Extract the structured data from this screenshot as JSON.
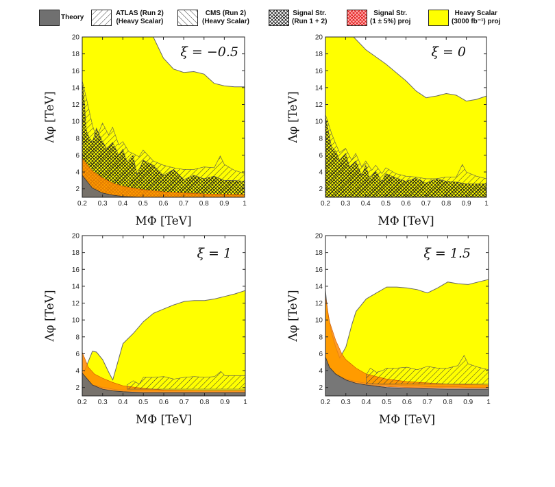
{
  "legend": {
    "items": [
      {
        "key": "theory",
        "line1": "Theory",
        "line2": "",
        "style": "solid",
        "color": "#6e6e6e"
      },
      {
        "key": "atlas",
        "line1": "ATLAS (Run 2)",
        "line2": "(Heavy Scalar)",
        "style": "hatch-ne",
        "color": "#444444"
      },
      {
        "key": "cms",
        "line1": "CMS  (Run 2)",
        "line2": "(Heavy Scalar)",
        "style": "hatch-nw",
        "color": "#444444"
      },
      {
        "key": "signal",
        "line1": "Signal Str.",
        "line2": "(Run 1 + 2)",
        "style": "crosshatch",
        "color": "#111111"
      },
      {
        "key": "signalproj",
        "line1": "Signal Str.",
        "line2": "(1 ± 5%) proj",
        "style": "crosshatch-red",
        "color": "#e02020"
      },
      {
        "key": "heavyproj",
        "line1": "Heavy Scalar",
        "line2": "(3000 fb⁻¹) proj",
        "style": "solid",
        "color": "#ffff00"
      }
    ]
  },
  "chart_data": [
    {
      "type": "area",
      "xi_label": "ξ = −0.5",
      "xlabel": "MΦ [TeV]",
      "ylabel": "Λφ [TeV]",
      "xlim": [
        0.2,
        1.0
      ],
      "ylim": [
        1,
        20
      ],
      "xticks": [
        "0.2",
        "0.3",
        "0.4",
        "0.5",
        "0.6",
        "0.7",
        "0.8",
        "0.9",
        "1"
      ],
      "yticks": [
        "2",
        "4",
        "6",
        "8",
        "10",
        "12",
        "14",
        "16",
        "18",
        "20"
      ],
      "series": [
        {
          "name": "Heavy Scalar (3000 fb⁻¹) proj",
          "region": "below",
          "x": [
            0.2,
            0.55,
            0.6,
            0.65,
            0.7,
            0.75,
            0.8,
            0.85,
            0.9,
            0.95,
            1.0
          ],
          "y": [
            20,
            20,
            17.5,
            16.2,
            15.8,
            15.9,
            15.6,
            14.5,
            14.2,
            14.1,
            14.1
          ]
        },
        {
          "name": "Signal Str. (Run 1 + 2)",
          "region": "below",
          "x": [
            0.2,
            0.21,
            0.22,
            0.23,
            0.25,
            0.27,
            0.3,
            0.32,
            0.35,
            0.38,
            0.4,
            0.42,
            0.45,
            0.47,
            0.5,
            0.55,
            0.6,
            0.65,
            0.7,
            0.75,
            0.8,
            0.85,
            0.9,
            0.95,
            1.0
          ],
          "y": [
            14.6,
            12.5,
            9.0,
            8.3,
            7.5,
            9.2,
            7.6,
            6.8,
            7.5,
            6.0,
            6.7,
            5.2,
            6.0,
            3.7,
            5.4,
            4.8,
            3.6,
            4.3,
            3.1,
            3.6,
            3.2,
            3.5,
            3.0,
            3.0,
            2.9
          ]
        },
        {
          "name": "ATLAS (Run 2) (Heavy Scalar)",
          "region": "below",
          "x": [
            0.2,
            0.22,
            0.25,
            0.27,
            0.3,
            0.33,
            0.35,
            0.38,
            0.4,
            0.43,
            0.45,
            0.48,
            0.5,
            0.55,
            0.6,
            0.65,
            0.7,
            0.75,
            0.8,
            0.85,
            0.88,
            0.9,
            0.95,
            1.0
          ],
          "y": [
            14.8,
            12.8,
            9.6,
            8.0,
            9.8,
            8.4,
            9.3,
            7.2,
            7.6,
            6.4,
            6.2,
            5.8,
            6.6,
            5.3,
            4.8,
            4.5,
            4.3,
            4.3,
            4.6,
            4.5,
            5.9,
            4.9,
            4.2,
            3.8
          ]
        },
        {
          "name": "Signal Str. (1 ± 5%) proj",
          "region": "below",
          "x": [
            0.2,
            0.25,
            0.3,
            0.35,
            0.4,
            0.5,
            0.6,
            0.7,
            0.8,
            0.9,
            1.0
          ],
          "y": [
            5.6,
            4.1,
            3.3,
            2.7,
            2.3,
            1.9,
            1.65,
            1.5,
            1.4,
            1.35,
            1.3
          ]
        },
        {
          "name": "Theory",
          "region": "below",
          "x": [
            0.2,
            0.25,
            0.3,
            0.35,
            0.4,
            0.5,
            0.6,
            0.8,
            1.0
          ],
          "y": [
            3.6,
            2.1,
            1.5,
            1.25,
            1.1,
            1.0,
            1.0,
            1.0,
            1.0
          ]
        }
      ]
    },
    {
      "type": "area",
      "xi_label": "ξ = 0",
      "xlabel": "MΦ [TeV]",
      "ylabel": "Λφ [TeV]",
      "xlim": [
        0.2,
        1.0
      ],
      "ylim": [
        1,
        20
      ],
      "xticks": [
        "0.2",
        "0.3",
        "0.4",
        "0.5",
        "0.6",
        "0.7",
        "0.8",
        "0.9",
        "1"
      ],
      "yticks": [
        "2",
        "4",
        "6",
        "8",
        "10",
        "12",
        "14",
        "16",
        "18",
        "20"
      ],
      "series": [
        {
          "name": "Heavy Scalar (3000 fb⁻¹) proj",
          "region": "below",
          "x": [
            0.2,
            0.34,
            0.4,
            0.5,
            0.6,
            0.65,
            0.7,
            0.75,
            0.8,
            0.85,
            0.9,
            0.95,
            1.0
          ],
          "y": [
            20,
            20,
            18.5,
            16.8,
            14.8,
            13.6,
            12.8,
            13.0,
            13.3,
            13.1,
            12.4,
            12.6,
            13.0
          ]
        },
        {
          "name": "Signal Str. (Run 1 + 2)",
          "region": "below",
          "x": [
            0.2,
            0.21,
            0.23,
            0.25,
            0.27,
            0.3,
            0.32,
            0.35,
            0.38,
            0.4,
            0.42,
            0.45,
            0.48,
            0.5,
            0.55,
            0.6,
            0.65,
            0.7,
            0.75,
            0.8,
            0.85,
            0.9,
            0.95,
            1.0
          ],
          "y": [
            10.5,
            9.4,
            7.0,
            6.5,
            5.4,
            6.2,
            4.6,
            5.3,
            3.6,
            4.8,
            3.2,
            4.1,
            2.9,
            3.8,
            3.3,
            2.9,
            3.3,
            2.7,
            3.2,
            2.9,
            2.8,
            2.6,
            2.6,
            2.6
          ]
        },
        {
          "name": "ATLAS (Run 2) (Heavy Scalar)",
          "region": "below",
          "x": [
            0.2,
            0.23,
            0.25,
            0.27,
            0.3,
            0.33,
            0.35,
            0.38,
            0.4,
            0.43,
            0.45,
            0.48,
            0.5,
            0.55,
            0.6,
            0.65,
            0.7,
            0.75,
            0.8,
            0.85,
            0.88,
            0.9,
            0.95,
            1.0
          ],
          "y": [
            10.8,
            8.6,
            7.4,
            6.3,
            6.8,
            5.4,
            6.2,
            4.6,
            5.3,
            4.2,
            4.8,
            3.8,
            4.5,
            3.8,
            3.5,
            3.4,
            3.2,
            3.2,
            3.4,
            3.4,
            4.9,
            4.0,
            3.5,
            3.2
          ]
        }
      ]
    },
    {
      "type": "area",
      "xi_label": "ξ = 1",
      "xlabel": "MΦ [TeV]",
      "ylabel": "Λφ [TeV]",
      "xlim": [
        0.2,
        1.0
      ],
      "ylim": [
        1,
        20
      ],
      "xticks": [
        "0.2",
        "0.3",
        "0.4",
        "0.5",
        "0.6",
        "0.7",
        "0.8",
        "0.9",
        "1"
      ],
      "yticks": [
        "2",
        "4",
        "6",
        "8",
        "10",
        "12",
        "14",
        "16",
        "18",
        "20"
      ],
      "series": [
        {
          "name": "Heavy Scalar (3000 fb⁻¹) proj",
          "region": "band",
          "x": [
            0.2,
            0.22,
            0.25,
            0.27,
            0.3,
            0.33,
            0.35,
            0.38,
            0.4,
            0.45,
            0.5,
            0.55,
            0.6,
            0.65,
            0.7,
            0.75,
            0.8,
            0.85,
            0.9,
            0.95,
            1.0
          ],
          "y": [
            3.2,
            4.5,
            6.3,
            6.2,
            5.3,
            3.8,
            2.9,
            5.5,
            7.2,
            8.4,
            9.8,
            10.8,
            11.3,
            11.8,
            12.2,
            12.3,
            12.3,
            12.5,
            12.8,
            13.1,
            13.5
          ],
          "y_low": [
            3.2,
            2.8,
            2.3,
            2.2,
            2.0,
            1.9,
            1.8,
            1.7,
            1.7,
            1.6,
            1.6,
            1.6,
            1.6,
            1.6,
            1.6,
            1.6,
            1.6,
            1.6,
            1.6,
            1.6,
            1.6
          ]
        },
        {
          "name": "Signal Str. (1 ± 5%) proj",
          "region": "below",
          "x": [
            0.2,
            0.23,
            0.26,
            0.3,
            0.35,
            0.4,
            0.5,
            0.6,
            0.8,
            1.0
          ],
          "y": [
            6.2,
            4.4,
            3.6,
            3.1,
            2.6,
            2.2,
            1.9,
            1.7,
            1.6,
            1.6
          ]
        },
        {
          "name": "ATLAS (Run 2) (Heavy Scalar)",
          "region": "band",
          "x": [
            0.42,
            0.45,
            0.48,
            0.5,
            0.55,
            0.6,
            0.65,
            0.7,
            0.75,
            0.8,
            0.85,
            0.88,
            0.9,
            0.95,
            1.0
          ],
          "y": [
            2.3,
            2.8,
            2.4,
            3.2,
            3.2,
            3.3,
            3.0,
            3.2,
            3.3,
            3.2,
            3.3,
            3.9,
            3.4,
            3.4,
            3.4
          ],
          "y_low": [
            1.8,
            1.8,
            1.8,
            1.8,
            1.8,
            1.8,
            1.8,
            1.8,
            1.8,
            1.8,
            1.8,
            1.8,
            1.8,
            1.8,
            1.8
          ]
        },
        {
          "name": "Theory",
          "region": "below",
          "x": [
            0.2,
            0.25,
            0.3,
            0.35,
            0.4,
            0.5,
            0.6,
            0.8,
            1.0
          ],
          "y": [
            3.7,
            2.3,
            1.8,
            1.6,
            1.5,
            1.4,
            1.4,
            1.4,
            1.4
          ]
        }
      ]
    },
    {
      "type": "area",
      "xi_label": "ξ = 1.5",
      "xlabel": "MΦ [TeV]",
      "ylabel": "Λφ [TeV]",
      "xlim": [
        0.2,
        1.0
      ],
      "ylim": [
        1,
        20
      ],
      "xticks": [
        "0.2",
        "0.3",
        "0.4",
        "0.5",
        "0.6",
        "0.7",
        "0.8",
        "0.9",
        "1"
      ],
      "yticks": [
        "2",
        "4",
        "6",
        "8",
        "10",
        "12",
        "14",
        "16",
        "18",
        "20"
      ],
      "series": [
        {
          "name": "Heavy Scalar (3000 fb⁻¹) proj",
          "region": "band",
          "x": [
            0.2,
            0.21,
            0.23,
            0.25,
            0.27,
            0.3,
            0.33,
            0.35,
            0.4,
            0.45,
            0.5,
            0.55,
            0.6,
            0.65,
            0.7,
            0.75,
            0.8,
            0.85,
            0.9,
            0.95,
            1.0
          ],
          "y": [
            13.5,
            11.0,
            8.5,
            6.8,
            5.5,
            6.8,
            9.5,
            11.0,
            12.5,
            13.2,
            13.9,
            13.9,
            13.8,
            13.6,
            13.2,
            13.8,
            14.5,
            14.3,
            14.2,
            14.5,
            14.8
          ],
          "y_low": [
            5.0,
            4.6,
            4.0,
            3.6,
            3.3,
            3.0,
            2.8,
            2.7,
            2.5,
            2.4,
            2.3,
            2.3,
            2.2,
            2.2,
            2.1,
            2.1,
            2.1,
            2.1,
            2.0,
            2.0,
            2.0
          ]
        },
        {
          "name": "Signal Str. (1 ± 5%) proj",
          "region": "band",
          "x": [
            0.2,
            0.22,
            0.25,
            0.28,
            0.3,
            0.35,
            0.4,
            0.5,
            0.6,
            0.8,
            1.0
          ],
          "y": [
            12.8,
            9.8,
            7.6,
            6.0,
            5.3,
            4.3,
            3.6,
            3.0,
            2.7,
            2.4,
            2.3
          ],
          "y_low": [
            4.8,
            4.2,
            3.5,
            3.0,
            2.8,
            2.5,
            2.3,
            2.1,
            2.0,
            1.9,
            1.9
          ]
        },
        {
          "name": "ATLAS (Run 2) (Heavy Scalar)",
          "region": "band",
          "x": [
            0.4,
            0.42,
            0.45,
            0.48,
            0.5,
            0.55,
            0.6,
            0.65,
            0.7,
            0.75,
            0.8,
            0.85,
            0.88,
            0.9,
            0.95,
            1.0
          ],
          "y": [
            3.5,
            4.3,
            3.8,
            4.0,
            4.3,
            4.3,
            4.4,
            4.1,
            4.5,
            4.3,
            4.3,
            4.6,
            5.8,
            4.8,
            4.4,
            4.1
          ],
          "y_low": [
            2.4,
            2.4,
            2.4,
            2.4,
            2.4,
            2.4,
            2.4,
            2.4,
            2.4,
            2.4,
            2.4,
            2.4,
            2.4,
            2.4,
            2.4,
            2.4
          ]
        },
        {
          "name": "Theory",
          "region": "below",
          "x": [
            0.2,
            0.22,
            0.25,
            0.3,
            0.35,
            0.4,
            0.5,
            0.6,
            0.8,
            1.0
          ],
          "y": [
            5.6,
            4.4,
            3.6,
            2.9,
            2.5,
            2.3,
            2.0,
            1.9,
            1.8,
            1.8
          ]
        }
      ]
    }
  ]
}
